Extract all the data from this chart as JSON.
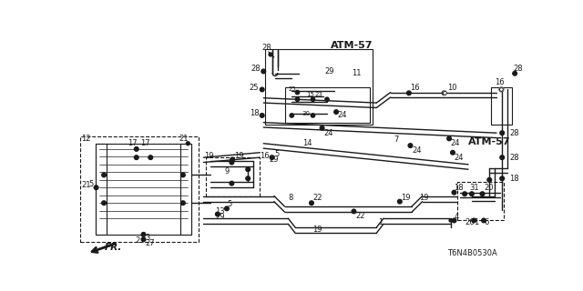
{
  "background_color": "#ffffff",
  "diagram_color": "#1a1a1a",
  "part_number": "T6N4B0530A",
  "figsize": [
    6.4,
    3.2
  ],
  "dpi": 100,
  "xlim": [
    0,
    640
  ],
  "ylim": [
    0,
    320
  ]
}
